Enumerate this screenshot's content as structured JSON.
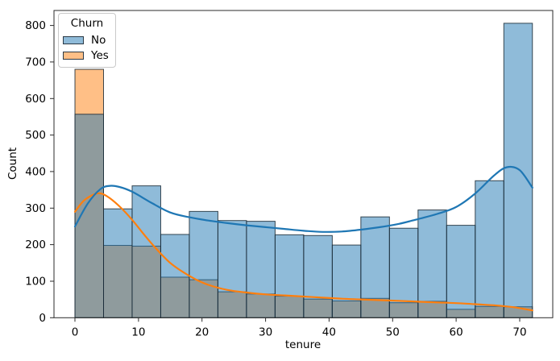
{
  "axes": {
    "xlabel": "tenure",
    "ylabel": "Count",
    "xticks": [
      0,
      10,
      20,
      30,
      40,
      50,
      60,
      70
    ],
    "yticks": [
      0,
      100,
      200,
      300,
      400,
      500,
      600,
      700,
      800
    ]
  },
  "legend": {
    "title": "Churn",
    "position": "upper left",
    "items": [
      {
        "label": "No",
        "color": "#1f77b4"
      },
      {
        "label": "Yes",
        "color": "#ff7f0e"
      }
    ]
  },
  "colors": {
    "no": "#1f77b4",
    "yes": "#ff7f0e",
    "bar_alpha": 0.5,
    "bar_edge": "#1c2b36",
    "spine": "#2b2b2b",
    "text": "#000000",
    "legend_border": "#c9c9c9"
  },
  "chart_data": {
    "type": "histogram",
    "title": "",
    "xlabel": "tenure",
    "ylabel": "Count",
    "legend_title": "Churn",
    "grid": false,
    "xlim": [
      -3.3,
      75.2
    ],
    "ylim": [
      0,
      841
    ],
    "bin_edges": [
      0,
      4.5,
      9,
      13.5,
      18,
      22.5,
      27,
      31.5,
      36,
      40.5,
      45,
      49.5,
      54,
      58.5,
      63,
      67.5,
      72
    ],
    "series": [
      {
        "name": "No",
        "color": "#1f77b4",
        "bar_counts": [
          557,
          298,
          361,
          228,
          291,
          266,
          264,
          227,
          225,
          199,
          276,
          245,
          295,
          253,
          375,
          806
        ],
        "kde": {
          "x": [
            0,
            2,
            4,
            5.5,
            7,
            9,
            12,
            15,
            18,
            21,
            24,
            27,
            30,
            33,
            36,
            39,
            42,
            45,
            48,
            51,
            54,
            57,
            60,
            63,
            66,
            68,
            70,
            72
          ],
          "y": [
            250,
            312,
            352,
            361,
            358,
            345,
            315,
            288,
            275,
            266,
            259,
            253,
            248,
            243,
            238,
            235,
            236,
            241,
            248,
            257,
            270,
            284,
            303,
            340,
            390,
            412,
            404,
            356
          ]
        }
      },
      {
        "name": "Yes",
        "color": "#ff7f0e",
        "bar_counts": [
          680,
          198,
          196,
          111,
          104,
          71,
          65,
          59,
          51,
          46,
          53,
          41,
          45,
          23,
          31,
          30
        ],
        "kde": {
          "x": [
            0,
            1.5,
            3.5,
            5,
            7,
            9,
            11,
            13,
            15,
            17,
            19,
            21,
            24,
            27,
            30,
            33,
            36,
            39,
            42,
            45,
            48,
            51,
            54,
            57,
            60,
            63,
            66,
            69,
            72
          ],
          "y": [
            290,
            322,
            340,
            333,
            305,
            268,
            225,
            185,
            150,
            125,
            105,
            90,
            76,
            69,
            64,
            61,
            58,
            55,
            52,
            50,
            48,
            46,
            44,
            42,
            40,
            37,
            34,
            29,
            20
          ]
        }
      }
    ]
  }
}
